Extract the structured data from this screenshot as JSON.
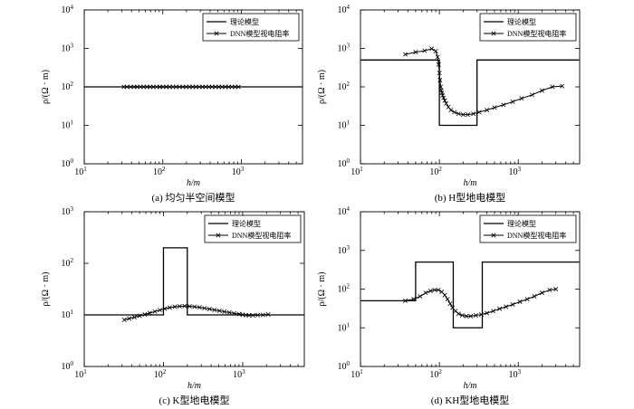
{
  "chart_data": [
    {
      "type": "line",
      "caption": "(a) 均匀半空间模型",
      "xlabel": "h/m",
      "ylabel": "ρ/(Ω · m)",
      "xscale": "log",
      "yscale": "log",
      "xlim": [
        10,
        6000
      ],
      "ylim": [
        1,
        10000
      ],
      "x_ticks": [
        "10^1",
        "10^2",
        "10^3"
      ],
      "y_ticks": [
        "10^0",
        "10^1",
        "10^2",
        "10^3",
        "10^4"
      ],
      "legend_position": "top-right",
      "series": [
        {
          "name": "理论模型",
          "style": "step",
          "x": [
            10,
            6000
          ],
          "y": [
            100,
            100
          ]
        },
        {
          "name": "DNN模型视电阻率",
          "style": "marker-line",
          "x": [
            32,
            35,
            39,
            43,
            47,
            52,
            57,
            63,
            69,
            76,
            84,
            92,
            101,
            111,
            122,
            135,
            148,
            163,
            180,
            198,
            218,
            240,
            264,
            290,
            320,
            352,
            387,
            426,
            469,
            516,
            568,
            625,
            688,
            757,
            834,
            918
          ],
          "y": [
            100,
            100,
            100,
            100,
            100,
            100,
            100,
            100,
            100,
            100,
            100,
            100,
            100,
            100,
            100,
            100,
            100,
            100,
            100,
            100,
            100,
            100,
            100,
            100,
            100,
            100,
            100,
            100,
            100,
            100,
            100,
            100,
            100,
            100,
            100,
            100
          ]
        }
      ]
    },
    {
      "type": "line",
      "caption": "(b) H型地电模型",
      "xlabel": "h/m",
      "ylabel": "ρ/(Ω · m)",
      "xscale": "log",
      "yscale": "log",
      "xlim": [
        10,
        6000
      ],
      "ylim": [
        1,
        10000
      ],
      "x_ticks": [
        "10^1",
        "10^2",
        "10^3"
      ],
      "y_ticks": [
        "10^0",
        "10^1",
        "10^2",
        "10^3",
        "10^4"
      ],
      "legend_position": "top-right",
      "series": [
        {
          "name": "理论模型",
          "style": "step",
          "x": [
            10,
            100,
            100,
            300,
            300,
            6000
          ],
          "y": [
            500,
            500,
            10,
            10,
            500,
            500
          ]
        },
        {
          "name": "DNN模型视电阻率",
          "style": "marker-line",
          "x": [
            37,
            50,
            65,
            80,
            90,
            95,
            98,
            100,
            102,
            104,
            106,
            108,
            110,
            113,
            117,
            122,
            130,
            140,
            155,
            175,
            200,
            230,
            270,
            320,
            400,
            500,
            650,
            850,
            1100,
            1500,
            2000,
            2700,
            3600
          ],
          "y": [
            700,
            800,
            870,
            980,
            850,
            600,
            380,
            230,
            150,
            100,
            80,
            70,
            60,
            52,
            44,
            37,
            30,
            25,
            22,
            20,
            19,
            19,
            20,
            22,
            25,
            29,
            34,
            41,
            50,
            62,
            80,
            100,
            105
          ]
        }
      ]
    },
    {
      "type": "line",
      "caption": "(c) K型地电模型",
      "xlabel": "h/m",
      "ylabel": "ρ/(Ω · m)",
      "xscale": "log",
      "yscale": "log",
      "xlim": [
        10,
        6000
      ],
      "ylim": [
        1,
        1000
      ],
      "x_ticks": [
        "10^1",
        "10^2",
        "10^3"
      ],
      "y_ticks": [
        "10^0",
        "10^1",
        "10^2",
        "10^3"
      ],
      "legend_position": "top-right",
      "series": [
        {
          "name": "理论模型",
          "style": "step",
          "x": [
            10,
            100,
            100,
            200,
            200,
            6000
          ],
          "y": [
            10,
            10,
            200,
            200,
            10,
            10
          ]
        },
        {
          "name": "DNN模型视电阻率",
          "style": "marker-line",
          "x": [
            32,
            37,
            43,
            50,
            58,
            67,
            78,
            90,
            104,
            120,
            139,
            160,
            185,
            214,
            247,
            285,
            330,
            381,
            440,
            508,
            587,
            678,
            783,
            904,
            1000,
            1100,
            1200,
            1350,
            1550,
            1800,
            2100
          ],
          "y": [
            8,
            8.5,
            9,
            9.6,
            10.2,
            10.9,
            11.6,
            12.4,
            13.2,
            13.9,
            14.4,
            14.7,
            14.8,
            14.7,
            14.4,
            14,
            13.5,
            13,
            12.5,
            12,
            11.5,
            11.1,
            10.7,
            10.4,
            10.1,
            9.9,
            9.8,
            9.8,
            9.9,
            10,
            10.2
          ]
        }
      ]
    },
    {
      "type": "line",
      "caption": "(d) KH型地电模型",
      "xlabel": "h/m",
      "ylabel": "ρ/(Ω · m)",
      "xscale": "log",
      "yscale": "log",
      "xlim": [
        10,
        6000
      ],
      "ylim": [
        1,
        10000
      ],
      "x_ticks": [
        "10^1",
        "10^2",
        "10^3"
      ],
      "y_ticks": [
        "10^0",
        "10^1",
        "10^2",
        "10^3",
        "10^4"
      ],
      "legend_position": "top-right",
      "series": [
        {
          "name": "理论模型",
          "style": "step",
          "x": [
            10,
            50,
            50,
            150,
            150,
            350,
            350,
            6000
          ],
          "y": [
            50,
            50,
            500,
            500,
            10,
            10,
            500,
            500
          ]
        },
        {
          "name": "DNN模型视电阻率",
          "style": "marker-line",
          "x": [
            37,
            47,
            57,
            67,
            77,
            87,
            97,
            107,
            117,
            127,
            137,
            147,
            160,
            175,
            195,
            220,
            250,
            290,
            340,
            400,
            480,
            580,
            700,
            850,
            1050,
            1300,
            1600,
            2000,
            2500,
            3000
          ],
          "y": [
            50,
            55,
            65,
            80,
            90,
            95,
            95,
            85,
            70,
            55,
            42,
            33,
            27,
            23,
            21,
            20,
            20,
            21,
            22,
            24,
            27,
            31,
            35,
            40,
            47,
            55,
            65,
            80,
            95,
            100
          ]
        }
      ]
    }
  ]
}
